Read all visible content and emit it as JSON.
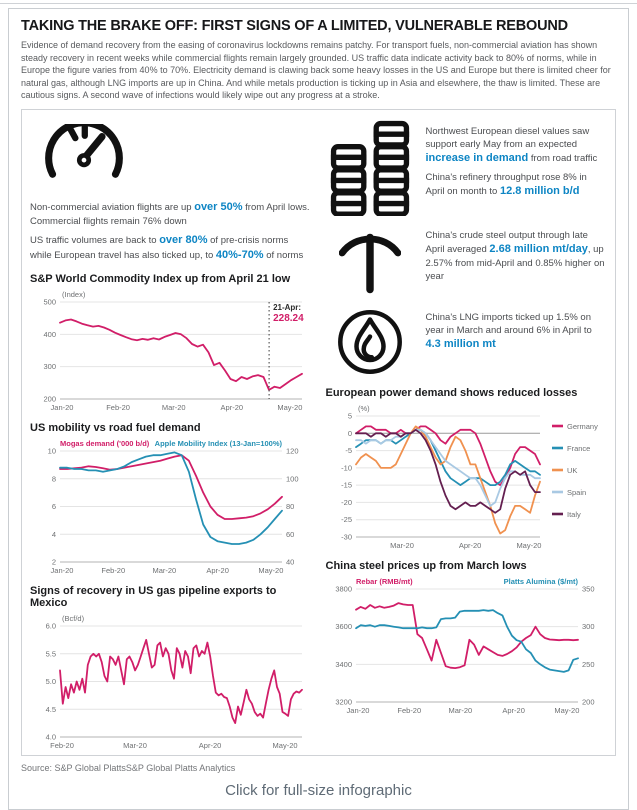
{
  "page": {
    "title": "TAKING THE BRAKE OFF: FIRST SIGNS OF A LIMITED, VULNERABLE REBOUND",
    "intro": "Evidence of demand recovery from the easing of coronavirus lockdowns remains patchy. For transport fuels, non-commercial aviation has shown steady recovery in recent weeks while commercial flights remain largely grounded. US traffic data indicate activity back to 80% of norms, while in Europe the figure varies from 40% to 70%. Electricity demand is clawing back some heavy losses in the US and Europe but there is limited cheer for natural gas, although LNG imports are up in China. And while metals production is ticking up in Asia and elsewhere, the thaw is limited. These are cautious signs. A second wave of infections would likely wipe out any progress at a stroke.",
    "source_line": "Source: S&P Global PlattsS&P Global Platts Analytics",
    "click_caption": "Click for full-size infographic"
  },
  "icons": {
    "aviation": "speedometer-icon",
    "refinery": "oil-drums-icon",
    "steel": "pickaxe-icon",
    "lng": "flame-icon"
  },
  "colors": {
    "accent_blue": "#0d85c4",
    "platts_pink": "#d11e68",
    "teal": "#2590b4",
    "uk_orange": "#f0914f",
    "spain_light_blue": "#a9c9e3",
    "italy_dark_purple": "#641f50"
  },
  "facts": {
    "aviation": {
      "p1a": "Non-commercial aviation flights are up ",
      "p1b": "over 50%",
      "p1c": " from April lows. Commercial flights remain 76% down",
      "p2a": "US traffic volumes are back to ",
      "p2b": "over 80%",
      "p2c": " of pre-crisis norms while European travel has also ticked up, to ",
      "p2d": "40%-70%",
      "p2e": " of norms"
    },
    "refinery": {
      "p1a": "Northwest European diesel values saw support early May from an expected ",
      "p1b": "increase in demand",
      "p1c": " from road traffic",
      "p2a": "China's refinery throughput rose 8% in April on month to ",
      "p2b": "12.8 million b/d"
    },
    "steel": {
      "p1a": "China's crude steel output through late April averaged ",
      "p1b": "2.68 million mt/day",
      "p1c": ", up 2.57% from mid-April and 0.85% higher on year"
    },
    "lng": {
      "p1a": "China's LNG imports ticked up 1.5% on year in March and around 6% in April to ",
      "p1b": "4.3 million mt"
    }
  },
  "chart_data": [
    {
      "type": "line",
      "title": "S&P World Commodity Index up from April 21 low",
      "ylabel": "(Index)",
      "ylim": [
        200,
        500
      ],
      "yticks": [
        200,
        300,
        400,
        500
      ],
      "ytick_labels": [
        "200",
        "300",
        "400",
        "500"
      ],
      "xticks": [
        {
          "f": 0.0,
          "label": "Jan-20"
        },
        {
          "f": 0.24,
          "label": "Feb-20"
        },
        {
          "f": 0.47,
          "label": "Mar-20"
        },
        {
          "f": 0.71,
          "label": "Apr-20"
        },
        {
          "f": 0.95,
          "label": "May-20"
        }
      ],
      "annotation": {
        "f": 0.864,
        "line1": "21-Apr:",
        "line2": "228.24"
      },
      "series": [
        {
          "name": "S&P World Commodity Index",
          "color": "#d11e68",
          "axis": "left",
          "values": [
            436,
            443,
            446,
            440,
            433,
            428,
            424,
            426,
            421,
            414,
            405,
            398,
            391,
            385,
            382,
            386,
            383,
            388,
            384,
            392,
            398,
            404,
            400,
            388,
            370,
            362,
            368,
            344,
            305,
            312,
            288,
            262,
            255,
            268,
            262,
            270,
            274,
            268,
            228,
            238,
            234,
            246,
            258,
            268,
            278
          ]
        }
      ]
    },
    {
      "type": "line",
      "title": "US mobility vs road fuel demand",
      "ylim": [
        2,
        10
      ],
      "yticks": [
        2,
        4,
        6,
        8,
        10
      ],
      "ytick_labels": [
        "2",
        "4",
        "6",
        "8",
        "10"
      ],
      "y2lim": [
        40,
        120
      ],
      "y2ticks": [
        40,
        60,
        80,
        100,
        120
      ],
      "y2tick_labels": [
        "40",
        "60",
        "80",
        "100",
        "120"
      ],
      "axis_labels": {
        "left": "Mogas demand ('000 b/d)",
        "right": "Apple Mobility Index (13-Jan=100%)"
      },
      "xticks": [
        {
          "f": 0.0,
          "label": "Jan-20"
        },
        {
          "f": 0.24,
          "label": "Feb-20"
        },
        {
          "f": 0.47,
          "label": "Mar-20"
        },
        {
          "f": 0.71,
          "label": "Apr-20"
        },
        {
          "f": 0.95,
          "label": "May-20"
        }
      ],
      "series": [
        {
          "name": "Mogas demand ('000 b/d)",
          "color": "#d11e68",
          "axis": "left",
          "values": [
            8.7,
            8.7,
            8.75,
            8.8,
            8.9,
            8.85,
            8.75,
            8.65,
            8.7,
            8.8,
            8.9,
            9.0,
            9.1,
            9.2,
            9.3,
            9.45,
            9.6,
            9.7,
            9.3,
            8.2,
            7.0,
            6.0,
            5.4,
            5.1,
            5.1,
            5.15,
            5.2,
            5.3,
            5.5,
            5.8,
            6.2,
            6.7
          ]
        },
        {
          "name": "Apple Mobility Index (13-Jan=100%)",
          "color": "#2590b4",
          "axis": "right",
          "values": [
            108,
            108,
            107,
            107,
            106,
            106,
            105,
            106,
            107,
            109,
            112,
            114,
            116,
            117,
            117,
            118,
            119,
            117,
            105,
            85,
            67,
            58,
            55,
            54,
            53,
            53,
            54,
            56,
            60,
            65,
            71,
            77
          ]
        }
      ]
    },
    {
      "type": "line",
      "title": "Signs of recovery in US gas pipeline exports to Mexico",
      "ylabel": "(Bcf/d)",
      "ylim": [
        4.0,
        6.0
      ],
      "yticks": [
        4.0,
        4.5,
        5.0,
        5.5,
        6.0
      ],
      "ytick_labels": [
        "4.0",
        "4.5",
        "5.0",
        "5.5",
        "6.0"
      ],
      "xticks": [
        {
          "f": 0.0,
          "label": "Feb-20"
        },
        {
          "f": 0.31,
          "label": "Mar-20"
        },
        {
          "f": 0.62,
          "label": "Apr-20"
        },
        {
          "f": 0.93,
          "label": "May-20"
        }
      ],
      "series": [
        {
          "name": "US gas pipeline exports to Mexico",
          "color": "#d11e68",
          "axis": "left",
          "values": [
            5.2,
            4.6,
            4.9,
            4.7,
            4.95,
            4.8,
            5.0,
            4.85,
            5.05,
            4.8,
            5.3,
            5.45,
            5.5,
            5.45,
            5.5,
            5.35,
            5.1,
            5.0,
            5.45,
            5.4,
            5.3,
            5.45,
            5.2,
            4.95,
            5.4,
            5.45,
            5.35,
            5.2,
            5.3,
            5.45,
            5.6,
            5.75,
            5.5,
            5.25,
            5.3,
            5.65,
            5.7,
            5.45,
            5.6,
            5.5,
            5.2,
            5.05,
            5.6,
            5.5,
            5.25,
            5.55,
            5.45,
            5.15,
            5.6,
            5.65,
            5.45,
            5.55,
            5.5,
            5.7,
            5.45,
            5.1,
            4.8,
            4.75,
            4.78,
            4.72,
            4.7,
            4.55,
            4.35,
            4.25,
            4.55,
            4.4,
            4.62,
            4.85,
            4.68,
            4.6,
            4.45,
            4.38,
            4.42,
            4.35,
            4.6,
            4.85,
            5.05,
            5.2,
            4.9,
            4.78,
            4.45,
            4.42,
            4.38,
            4.68,
            4.78,
            4.82,
            4.8,
            4.85
          ]
        }
      ]
    },
    {
      "type": "line",
      "title": "European power demand shows reduced losses",
      "ylabel": "(%)",
      "ylim": [
        -30,
        5
      ],
      "yticks": [
        5,
        0,
        -5,
        -10,
        -15,
        -20,
        -25,
        -30
      ],
      "ytick_labels": [
        "5",
        "0",
        "-5",
        "-10",
        "-15",
        "-20",
        "-25",
        "-30"
      ],
      "zero_dark": true,
      "legend": true,
      "legend_position": "right",
      "xticks": [
        {
          "f": 0.25,
          "label": "Mar-20"
        },
        {
          "f": 0.62,
          "label": "Apr-20"
        },
        {
          "f": 0.94,
          "label": "May-20"
        }
      ],
      "series": [
        {
          "name": "Germany",
          "color": "#d11e68",
          "axis": "left",
          "values": [
            0,
            1,
            2,
            2,
            1,
            1,
            1,
            0,
            0,
            1,
            0,
            0,
            1,
            2,
            2,
            1,
            0,
            -2,
            -3,
            -1,
            0,
            1,
            1,
            1,
            0,
            -3,
            -7,
            -11,
            -14,
            -15,
            -13,
            -10,
            -6,
            -4,
            -4,
            -5,
            -6,
            -9
          ]
        },
        {
          "name": "France",
          "color": "#2590b4",
          "axis": "left",
          "values": [
            -4,
            -3,
            -2,
            -2,
            -2,
            -3,
            -2,
            -2,
            -3,
            -2,
            -1,
            0,
            1,
            1,
            0,
            -2,
            -5,
            -8,
            -11,
            -13,
            -14,
            -15,
            -14,
            -13,
            -13,
            -13,
            -14,
            -15,
            -15,
            -14,
            -12,
            -9,
            -8,
            -9,
            -10,
            -11,
            -11,
            -12
          ]
        },
        {
          "name": "UK",
          "color": "#f0914f",
          "axis": "left",
          "values": [
            -9,
            -7,
            -6,
            -7,
            -8,
            -10,
            -10,
            -10,
            -9,
            -6,
            -3,
            0,
            2,
            1,
            -1,
            -4,
            -7,
            -9,
            -8,
            -4,
            -1,
            -2,
            -5,
            -9,
            -9,
            -13,
            -17,
            -21,
            -26,
            -29,
            -28,
            -24,
            -21,
            -21,
            -22,
            -23,
            -18,
            -14
          ]
        },
        {
          "name": "Spain",
          "color": "#a9c9e3",
          "axis": "left",
          "values": [
            -2,
            -2,
            -3,
            -2,
            -2,
            -3,
            -2,
            -2,
            -1,
            -1,
            0,
            0,
            1,
            1,
            0,
            -2,
            -4,
            -6,
            -8,
            -9,
            -10,
            -11,
            -12,
            -13,
            -13,
            -15,
            -18,
            -21,
            -20,
            -16,
            -13,
            -11,
            -11,
            -12,
            -12,
            -12,
            -13,
            -13
          ]
        },
        {
          "name": "Italy",
          "color": "#641f50",
          "axis": "left",
          "values": [
            0,
            0,
            0,
            -1,
            0,
            0,
            -1,
            0,
            0,
            -1,
            0,
            0,
            1,
            0,
            -2,
            -5,
            -9,
            -14,
            -18,
            -21,
            -22,
            -21,
            -20,
            -21,
            -21,
            -20,
            -21,
            -22,
            -23,
            -22,
            -16,
            -12,
            -11,
            -12,
            -11,
            -15,
            -17,
            -17
          ]
        }
      ]
    },
    {
      "type": "line",
      "title": "China steel prices up from March lows",
      "ylim": [
        3200,
        3800
      ],
      "yticks": [
        3200,
        3400,
        3600,
        3800
      ],
      "ytick_labels": [
        "3200",
        "3400",
        "3600",
        "3800"
      ],
      "y2lim": [
        200,
        350
      ],
      "y2ticks": [
        200,
        250,
        300,
        350
      ],
      "y2tick_labels": [
        "200",
        "250",
        "300",
        "350"
      ],
      "axis_labels": {
        "left": "Rebar (RMB/mt)",
        "right": "Platts Alumina ($/mt)"
      },
      "xticks": [
        {
          "f": 0.0,
          "label": "Jan-20"
        },
        {
          "f": 0.24,
          "label": "Feb-20"
        },
        {
          "f": 0.47,
          "label": "Mar-20"
        },
        {
          "f": 0.71,
          "label": "Apr-20"
        },
        {
          "f": 0.95,
          "label": "May-20"
        }
      ],
      "series": [
        {
          "name": "Rebar (RMB/mt)",
          "color": "#d11e68",
          "axis": "left",
          "values": [
            3690,
            3705,
            3695,
            3715,
            3700,
            3708,
            3700,
            3705,
            3712,
            3725,
            3718,
            3715,
            3715,
            3560,
            3540,
            3480,
            3420,
            3530,
            3460,
            3390,
            3382,
            3380,
            3385,
            3395,
            3530,
            3505,
            3450,
            3495,
            3480,
            3465,
            3450,
            3445,
            3455,
            3470,
            3490,
            3520,
            3540,
            3555,
            3600,
            3560,
            3540,
            3532,
            3530,
            3528,
            3530,
            3530,
            3528,
            3530
          ]
        },
        {
          "name": "Platts Alumina ($/mt)",
          "color": "#2590b4",
          "axis": "right",
          "values": [
            298,
            302,
            301,
            302,
            300,
            302,
            302,
            301,
            300,
            299,
            298,
            298,
            298,
            298,
            299,
            298,
            298,
            299,
            310,
            311,
            311,
            312,
            320,
            321,
            321,
            321,
            321,
            322,
            321,
            322,
            318,
            315,
            300,
            288,
            282,
            280,
            270,
            265,
            255,
            250,
            246,
            243,
            242,
            241,
            240,
            242,
            256,
            258
          ]
        }
      ]
    }
  ]
}
